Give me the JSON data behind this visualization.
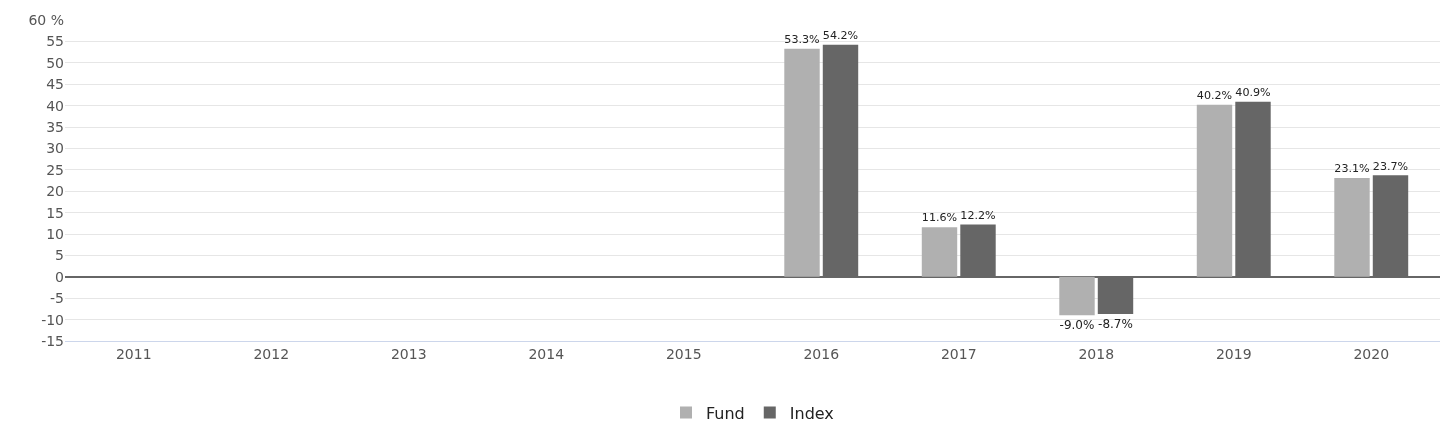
{
  "chart_data": {
    "type": "bar",
    "categories": [
      "2011",
      "2012",
      "2013",
      "2014",
      "2015",
      "2016",
      "2017",
      "2018",
      "2019",
      "2020"
    ],
    "series": [
      {
        "name": "Fund",
        "color": "#b0b0b0",
        "values": [
          null,
          null,
          null,
          null,
          null,
          53.3,
          11.6,
          -9.0,
          40.2,
          23.1
        ],
        "value_labels": [
          null,
          null,
          null,
          null,
          null,
          "53.3%",
          "11.6%",
          "-9.0%",
          "40.2%",
          "23.1%"
        ]
      },
      {
        "name": "Index",
        "color": "#666666",
        "values": [
          null,
          null,
          null,
          null,
          null,
          54.2,
          12.2,
          -8.7,
          40.9,
          23.7
        ],
        "value_labels": [
          null,
          null,
          null,
          null,
          null,
          "54.2%",
          "12.2%",
          "-8.7%",
          "40.9%",
          "23.7%"
        ]
      }
    ],
    "ylim": [
      -15,
      60
    ],
    "yticks": [
      -15,
      -10,
      -5,
      0,
      5,
      10,
      15,
      20,
      25,
      30,
      35,
      40,
      45,
      50,
      55,
      {
        "value": 60,
        "label": "60 %"
      }
    ],
    "grid": "y",
    "legend": "bottom"
  }
}
